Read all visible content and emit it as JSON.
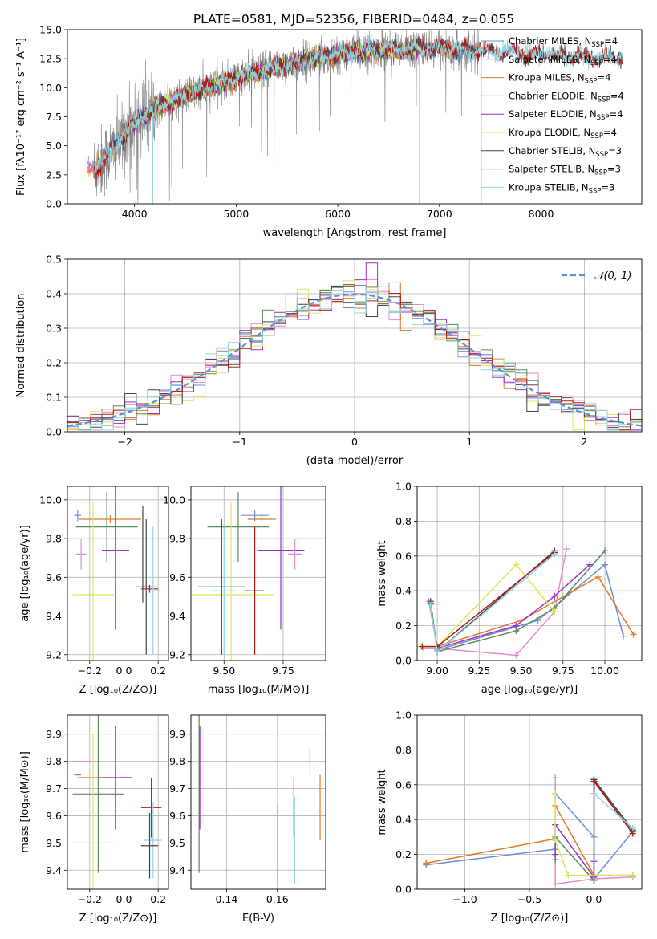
{
  "figure": {
    "title": "PLATE=0581, MJD=52356, FIBERID=0484, z=0.055"
  },
  "colors": {
    "chabrier_miles": "#6a8fd8",
    "salpeter_miles": "#e68bc7",
    "kroupa_miles": "#e07b28",
    "chabrier_elodie": "#5a8a5a",
    "salpeter_elodie": "#9b30c9",
    "kroupa_elodie": "#d8e85a",
    "chabrier_stelib": "#444444",
    "salpeter_stelib": "#b21818",
    "kroupa_stelib": "#8ed6e0",
    "data": "#808080",
    "normal": "#5b8fd6"
  },
  "chart_data": [
    {
      "id": "spectrum",
      "type": "line",
      "title": "PLATE=0581, MJD=52356, FIBERID=0484, z=0.055",
      "xlabel": "wavelength [Angstrom, rest frame]",
      "ylabel": "Flux [fλ10⁻¹⁷ erg cm⁻² s⁻¹ A⁻¹]",
      "xlim": [
        3340,
        8990
      ],
      "ylim": [
        0,
        15
      ],
      "xticks": [
        4000,
        5000,
        6000,
        7000,
        8000
      ],
      "yticks": [
        0.0,
        2.5,
        5.0,
        7.5,
        10.0,
        12.5,
        15.0
      ],
      "legend": "top-right",
      "series": [
        {
          "name": "Chabrier MILES, N_SSP=4",
          "color_key": "chabrier_miles"
        },
        {
          "name": "Salpeter MILES, N_SSP=4",
          "color_key": "salpeter_miles"
        },
        {
          "name": "Kroupa MILES, N_SSP=4",
          "color_key": "kroupa_miles"
        },
        {
          "name": "Chabrier ELODIE, N_SSP=4",
          "color_key": "chabrier_elodie"
        },
        {
          "name": "Salpeter ELODIE, N_SSP=4",
          "color_key": "salpeter_elodie"
        },
        {
          "name": "Kroupa ELODIE, N_SSP=4",
          "color_key": "kroupa_elodie"
        },
        {
          "name": "Chabrier STELIB, N_SSP=3",
          "color_key": "chabrier_stelib"
        },
        {
          "name": "Salpeter STELIB, N_SSP=3",
          "color_key": "salpeter_stelib"
        },
        {
          "name": "Kroupa STELIB, N_SSP=3",
          "color_key": "kroupa_stelib"
        }
      ],
      "continuum": {
        "x": [
          3600,
          3700,
          3800,
          3900,
          4000,
          4100,
          4200,
          4400,
          4600,
          4800,
          5000,
          5200,
          5400,
          5600,
          5800,
          6000,
          6200,
          6400,
          6600,
          6800,
          7000,
          7200,
          7400,
          7600,
          7800,
          8000,
          8200,
          8400,
          8600,
          8800
        ],
        "y": [
          3.0,
          3.8,
          4.8,
          6.0,
          7.0,
          7.6,
          8.3,
          9.0,
          9.6,
          10.2,
          10.8,
          11.3,
          11.8,
          12.2,
          12.6,
          12.9,
          13.1,
          13.2,
          13.3,
          13.4,
          13.4,
          13.3,
          13.2,
          13.1,
          13.0,
          12.9,
          12.8,
          12.7,
          12.6,
          12.5
        ]
      },
      "data_range": [
        3600,
        7400
      ],
      "model_ranges": {
        "miles": [
          3540,
          7410
        ],
        "elodie": [
          3900,
          6800
        ],
        "stelib": [
          3600,
          8800
        ]
      }
    },
    {
      "id": "residual_hist",
      "type": "line",
      "xlabel": "(data-model)/error",
      "ylabel": "Normed distribution",
      "xlim": [
        -2.5,
        2.5
      ],
      "ylim": [
        0,
        0.5
      ],
      "xticks": [
        -2,
        -1,
        0,
        1,
        2
      ],
      "xticklabels": [
        "−2",
        "−1",
        "0",
        "1",
        "2"
      ],
      "yticks": [
        0.0,
        0.1,
        0.2,
        0.3,
        0.4,
        0.5
      ],
      "grid": true,
      "legend": "top-right",
      "normal_label": "𝒩(0, 1)",
      "bin_width": 0.1
    },
    {
      "id": "age_vs_Z",
      "type": "scatter",
      "xlabel": "Z [log₁₀(Z/Z⊙)]",
      "ylabel": "age  [log₁₀(age/yr)]",
      "xlim": [
        -0.33,
        0.26
      ],
      "ylim": [
        9.17,
        10.07
      ],
      "xticks": [
        -0.2,
        0.0,
        0.2
      ],
      "xticklabels": [
        "−0.2",
        "0.0",
        "0.2"
      ],
      "yticks": [
        9.2,
        9.4,
        9.6,
        9.8,
        10.0
      ],
      "grid": true,
      "points": [
        {
          "c": "chabrier_miles",
          "x": -0.27,
          "y": 9.92,
          "dx": 0.02,
          "dy": 0.03
        },
        {
          "c": "kroupa_miles",
          "x": -0.08,
          "y": 9.9,
          "dx": 0.18,
          "dy": 0.02
        },
        {
          "c": "salpeter_miles",
          "x": -0.25,
          "y": 9.72,
          "dx": 0.03,
          "dy": 0.08
        },
        {
          "c": "chabrier_elodie",
          "x": -0.1,
          "y": 9.86,
          "dx": 0.18,
          "dy": 0.18
        },
        {
          "c": "salpeter_elodie",
          "x": -0.05,
          "y": 9.74,
          "dx": 0.08,
          "dy": 0.41
        },
        {
          "c": "kroupa_elodie",
          "x": -0.18,
          "y": 9.51,
          "dx": 0.12,
          "dy": 0.48
        },
        {
          "c": "chabrier_stelib",
          "x": 0.13,
          "y": 9.55,
          "dx": 0.06,
          "dy": 0.35
        },
        {
          "c": "salpeter_stelib",
          "x": 0.15,
          "y": 9.54,
          "dx": 0.05,
          "dy": 0.02
        },
        {
          "c": "kroupa_stelib",
          "x": 0.17,
          "y": 9.53,
          "dx": 0.05,
          "dy": 0.33
        },
        {
          "c": "chabrier_stelib",
          "x": 0.11,
          "y": 9.72,
          "dx": 0.0,
          "dy": 0.25
        }
      ]
    },
    {
      "id": "age_vs_mass",
      "type": "scatter",
      "xlabel": "mass [log₁₀(M/M⊙)]",
      "xlim": [
        9.36,
        9.93
      ],
      "ylim": [
        9.17,
        10.07
      ],
      "xticks": [
        9.5,
        9.75
      ],
      "xticklabels": [
        "9.50",
        "9.75"
      ],
      "yticks": [
        9.2,
        9.4,
        9.6,
        9.8,
        10.0
      ],
      "grid": true,
      "points": [
        {
          "c": "chabrier_miles",
          "x": 9.63,
          "y": 9.92,
          "dx": 0.06,
          "dy": 0.03
        },
        {
          "c": "kroupa_miles",
          "x": 9.66,
          "y": 9.9,
          "dx": 0.06,
          "dy": 0.02
        },
        {
          "c": "chabrier_elodie",
          "x": 9.56,
          "y": 9.86,
          "dx": 0.13,
          "dy": 0.18
        },
        {
          "c": "salpeter_elodie",
          "x": 9.74,
          "y": 9.74,
          "dx": 0.1,
          "dy": 0.41
        },
        {
          "c": "salpeter_miles",
          "x": 9.8,
          "y": 9.72,
          "dx": 0.03,
          "dy": 0.08
        },
        {
          "c": "kroupa_elodie",
          "x": 9.53,
          "y": 9.51,
          "dx": 0.18,
          "dy": 0.48
        },
        {
          "c": "salpeter_stelib",
          "x": 9.63,
          "y": 9.53,
          "dx": 0.04,
          "dy": 0.33
        },
        {
          "c": "chabrier_stelib",
          "x": 9.49,
          "y": 9.55,
          "dx": 0.1,
          "dy": 0.35
        },
        {
          "c": "kroupa_stelib",
          "x": 9.5,
          "y": 9.53,
          "dx": 0.05,
          "dy": 0.33
        }
      ]
    },
    {
      "id": "weight_vs_age",
      "type": "line",
      "xlabel": "age  [log₁₀(age/yr)]",
      "ylabel": "mass weight",
      "xlim": [
        8.88,
        10.22
      ],
      "ylim": [
        0,
        1
      ],
      "xticks": [
        9.0,
        9.25,
        9.5,
        9.75,
        10.0
      ],
      "xticklabels": [
        "9.00",
        "9.25",
        "9.50",
        "9.75",
        "10.00"
      ],
      "yticks": [
        0.0,
        0.2,
        0.4,
        0.6,
        0.8,
        1.0
      ],
      "grid": true,
      "series": [
        {
          "c": "chabrier_miles",
          "x": [
            8.96,
            9.0,
            9.6,
            10.0,
            10.11
          ],
          "y": [
            0.33,
            0.06,
            0.23,
            0.55,
            0.14
          ]
        },
        {
          "c": "salpeter_miles",
          "x": [
            8.95,
            9.0,
            9.47,
            9.7,
            9.77
          ],
          "y": [
            0.34,
            0.07,
            0.03,
            0.28,
            0.64
          ]
        },
        {
          "c": "kroupa_miles",
          "x": [
            8.91,
            9.0,
            9.5,
            9.96,
            10.17
          ],
          "y": [
            0.08,
            0.08,
            0.23,
            0.48,
            0.15
          ]
        },
        {
          "c": "chabrier_elodie",
          "x": [
            8.96,
            9.0,
            9.47,
            9.7,
            10.0
          ],
          "y": [
            0.33,
            0.05,
            0.17,
            0.3,
            0.63
          ]
        },
        {
          "c": "salpeter_elodie",
          "x": [
            8.92,
            9.0,
            9.47,
            9.7,
            9.91
          ],
          "y": [
            0.07,
            0.07,
            0.2,
            0.37,
            0.55
          ]
        },
        {
          "c": "kroupa_elodie",
          "x": [
            8.9,
            9.0,
            9.47,
            9.7
          ],
          "y": [
            0.08,
            0.08,
            0.55,
            0.28
          ]
        },
        {
          "c": "chabrier_stelib",
          "x": [
            8.96,
            9.0,
            9.7
          ],
          "y": [
            0.34,
            0.05,
            0.63
          ]
        },
        {
          "c": "salpeter_stelib",
          "x": [
            8.91,
            9.0,
            9.7
          ],
          "y": [
            0.08,
            0.08,
            0.62
          ]
        },
        {
          "c": "kroupa_stelib",
          "x": [
            8.96,
            9.0,
            9.7
          ],
          "y": [
            0.32,
            0.05,
            0.61
          ]
        }
      ]
    },
    {
      "id": "mass_vs_Z",
      "type": "scatter",
      "xlabel": "Z [log₁₀(Z/Z⊙)]",
      "ylabel": "mass [log₁₀(M/M⊙)]",
      "xlim": [
        -0.33,
        0.26
      ],
      "ylim": [
        9.33,
        9.97
      ],
      "xticks": [
        -0.2,
        0.0,
        0.2
      ],
      "xticklabels": [
        "−0.2",
        "0.0",
        "0.2"
      ],
      "yticks": [
        9.4,
        9.5,
        9.6,
        9.7,
        9.8,
        9.9
      ],
      "grid": true,
      "points": [
        {
          "c": "chabrier_miles",
          "x": -0.27,
          "y": 9.75,
          "dx": 0.02,
          "dy": 0.0
        },
        {
          "c": "salpeter_miles",
          "x": -0.22,
          "y": 9.8,
          "dx": 0.08,
          "dy": 0.0
        },
        {
          "c": "kroupa_miles",
          "x": -0.12,
          "y": 9.74,
          "dx": 0.15,
          "dy": 0.0
        },
        {
          "c": "salpeter_elodie",
          "x": -0.05,
          "y": 9.74,
          "dx": 0.1,
          "dy": 0.19
        },
        {
          "c": "chabrier_elodie",
          "x": -0.15,
          "y": 9.68,
          "dx": 0.15,
          "dy": 0.29
        },
        {
          "c": "kroupa_elodie",
          "x": -0.18,
          "y": 9.5,
          "dx": 0.12,
          "dy": 0.4
        },
        {
          "c": "salpeter_stelib",
          "x": 0.16,
          "y": 9.63,
          "dx": 0.06,
          "dy": 0.11
        },
        {
          "c": "kroupa_stelib",
          "x": 0.17,
          "y": 9.51,
          "dx": 0.05,
          "dy": 0.14
        },
        {
          "c": "chabrier_stelib",
          "x": 0.15,
          "y": 9.49,
          "dx": 0.05,
          "dy": 0.12
        }
      ]
    },
    {
      "id": "mass_vs_EBV",
      "type": "scatter",
      "xlabel": "E(B-V)",
      "xlim": [
        0.126,
        0.179
      ],
      "ylim": [
        9.33,
        9.97
      ],
      "xticks": [
        0.14,
        0.16
      ],
      "xticklabels": [
        "0.14",
        "0.16"
      ],
      "yticks": [
        9.4,
        9.5,
        9.6,
        9.7,
        9.8,
        9.9
      ],
      "grid": true,
      "points": [
        {
          "c": "salpeter_elodie",
          "x": 0.1295,
          "y": 9.74,
          "dx": 0,
          "dy": 0.19
        },
        {
          "c": "chabrier_elodie",
          "x": 0.1292,
          "y": 9.68,
          "dx": 0,
          "dy": 0.29
        },
        {
          "c": "kroupa_elodie",
          "x": 0.16,
          "y": 9.5,
          "dx": 0,
          "dy": 0.4
        },
        {
          "c": "chabrier_stelib",
          "x": 0.1602,
          "y": 9.49,
          "dx": 0,
          "dy": 0.15
        },
        {
          "c": "salpeter_stelib",
          "x": 0.1665,
          "y": 9.63,
          "dx": 0,
          "dy": 0.11
        },
        {
          "c": "kroupa_stelib",
          "x": 0.1668,
          "y": 9.51,
          "dx": 0,
          "dy": 0.16
        },
        {
          "c": "salpeter_miles",
          "x": 0.1728,
          "y": 9.8,
          "dx": 0,
          "dy": 0.05
        },
        {
          "c": "kroupa_miles",
          "x": 0.1768,
          "y": 9.63,
          "dx": 0,
          "dy": 0.12
        }
      ]
    },
    {
      "id": "weight_vs_Z",
      "type": "line",
      "xlabel": "Z [log₁₀(Z/Z⊙)]",
      "ylabel": "mass weight",
      "xlim": [
        -1.37,
        0.37
      ],
      "ylim": [
        0,
        1
      ],
      "xticks": [
        -1.0,
        -0.5,
        0.0
      ],
      "xticklabels": [
        "−1.0",
        "−0.5",
        "0.0"
      ],
      "yticks": [
        0.0,
        0.2,
        0.4,
        0.6,
        0.8,
        1.0
      ],
      "grid": true,
      "series": [
        {
          "c": "chabrier_miles",
          "x": [
            -1.3,
            -0.3,
            -0.3,
            0.0,
            0.0,
            0.3
          ],
          "y": [
            0.14,
            0.23,
            0.55,
            0.3,
            0.06,
            0.33
          ]
        },
        {
          "c": "salpeter_miles",
          "x": [
            -0.3,
            -0.3,
            0.0,
            0.3
          ],
          "y": [
            0.64,
            0.03,
            0.06,
            0.07
          ]
        },
        {
          "c": "kroupa_miles",
          "x": [
            -1.3,
            -0.3,
            -0.3,
            0.0,
            0.3
          ],
          "y": [
            0.15,
            0.29,
            0.48,
            0.08,
            0.08
          ]
        },
        {
          "c": "chabrier_elodie",
          "x": [
            -0.3,
            -0.3,
            0.0,
            0.0,
            0.3
          ],
          "y": [
            0.17,
            0.3,
            0.05,
            0.63,
            0.33
          ]
        },
        {
          "c": "salpeter_elodie",
          "x": [
            -0.3,
            -0.3,
            0.0,
            0.0
          ],
          "y": [
            0.2,
            0.37,
            0.07,
            0.16
          ]
        },
        {
          "c": "kroupa_elodie",
          "x": [
            -0.3,
            -0.3,
            -0.2,
            0.3
          ],
          "y": [
            0.55,
            0.28,
            0.08,
            0.08
          ]
        },
        {
          "c": "chabrier_stelib",
          "x": [
            0.0,
            0.0,
            0.3
          ],
          "y": [
            0.05,
            0.63,
            0.34
          ]
        },
        {
          "c": "salpeter_stelib",
          "x": [
            0.0,
            0.0,
            0.3
          ],
          "y": [
            0.05,
            0.62,
            0.32
          ]
        },
        {
          "c": "kroupa_stelib",
          "x": [
            0.0,
            0.0,
            0.3
          ],
          "y": [
            0.05,
            0.55,
            0.35
          ]
        }
      ]
    }
  ]
}
